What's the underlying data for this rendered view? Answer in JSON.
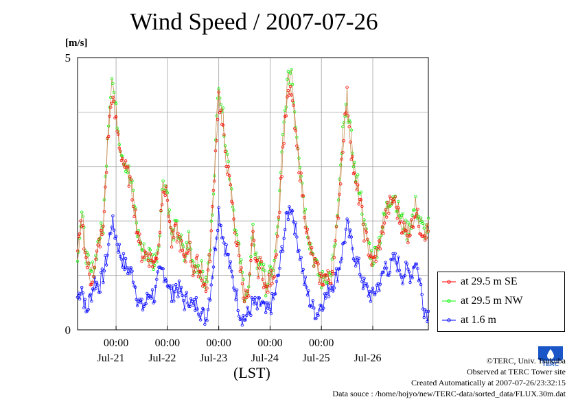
{
  "chart_data": {
    "type": "line",
    "title": "Wind Speed / 2007-07-26",
    "ylabel": "[m/s]",
    "xlabel": "(LST)",
    "ylim": [
      0,
      5
    ],
    "yticks": [
      "0",
      "5"
    ],
    "xlim": [
      "2007-07-20 06:00",
      "2007-07-26 22:00"
    ],
    "time_tick_labels": [
      "00:00",
      "00:00",
      "00:00",
      "00:00",
      "00:00"
    ],
    "date_tick_labels": [
      "Jul-21",
      "Jul-22",
      "Jul-23",
      "Jul-24",
      "Jul-25",
      "Jul-26"
    ],
    "grid": true,
    "legend_position": "lower-right outside",
    "x_keypoints_hours": [
      0,
      2,
      4,
      6,
      8,
      10,
      12,
      14,
      16,
      18,
      20,
      22,
      24,
      26,
      28,
      30,
      32,
      34,
      36,
      38,
      40,
      42,
      44,
      46,
      48,
      50,
      52,
      54,
      56,
      58,
      60,
      62,
      64,
      66,
      68,
      70,
      72,
      74,
      76,
      78,
      80,
      82,
      84,
      86,
      88,
      90,
      92,
      94,
      96,
      98,
      100,
      102,
      104,
      106,
      108,
      110,
      112,
      114,
      116,
      118,
      120,
      122,
      124,
      126,
      128,
      130,
      132,
      134,
      136,
      138,
      140,
      142,
      144,
      146,
      148,
      150,
      152,
      154,
      156,
      158,
      160,
      162,
      164
    ],
    "series": [
      {
        "name": "at 29.5 m SE",
        "color": "#ff0000",
        "values": [
          1.4,
          2.0,
          1.3,
          0.9,
          1.1,
          1.6,
          1.8,
          3.4,
          4.3,
          3.8,
          3.3,
          3.0,
          2.8,
          2.4,
          1.8,
          1.4,
          1.4,
          1.3,
          1.2,
          1.6,
          2.7,
          2.4,
          1.6,
          1.8,
          1.6,
          1.2,
          1.6,
          1.1,
          1.2,
          1.0,
          0.7,
          1.4,
          2.9,
          4.3,
          3.6,
          3.0,
          2.4,
          1.7,
          1.2,
          0.6,
          0.6,
          1.7,
          1.1,
          1.2,
          0.7,
          0.9,
          1.1,
          2.0,
          3.3,
          4.2,
          4.4,
          3.5,
          2.9,
          2.2,
          1.6,
          1.3,
          1.1,
          0.9,
          1.0,
          0.9,
          1.3,
          2.2,
          3.4,
          4.3,
          3.3,
          2.6,
          2.4,
          1.8,
          1.5,
          1.2,
          1.4,
          1.7,
          2.1,
          2.3,
          2.4,
          2.1,
          1.9,
          1.7,
          1.9,
          2.2,
          1.9,
          1.8,
          1.8
        ]
      },
      {
        "name": "at 29.5 m NW",
        "color": "#00ff00",
        "values": [
          1.4,
          2.1,
          1.4,
          1.0,
          1.2,
          1.7,
          1.9,
          3.6,
          4.7,
          4.0,
          3.4,
          3.1,
          2.9,
          2.5,
          1.8,
          1.5,
          1.4,
          1.4,
          1.2,
          1.6,
          2.8,
          2.5,
          1.7,
          1.9,
          1.7,
          1.3,
          1.7,
          1.2,
          1.2,
          1.1,
          0.8,
          1.5,
          3.0,
          4.6,
          3.9,
          3.2,
          2.6,
          1.8,
          1.3,
          0.7,
          0.7,
          1.8,
          1.2,
          1.3,
          0.8,
          1.0,
          1.2,
          2.1,
          3.5,
          4.5,
          4.8,
          3.8,
          3.1,
          2.3,
          1.7,
          1.4,
          1.1,
          0.9,
          1.0,
          1.0,
          1.4,
          2.3,
          3.6,
          4.1,
          3.5,
          2.8,
          2.6,
          1.9,
          1.6,
          1.3,
          1.5,
          1.8,
          2.2,
          2.4,
          2.5,
          2.2,
          2.0,
          1.8,
          2.0,
          2.3,
          2.0,
          1.8,
          1.9
        ]
      },
      {
        "name": "at 1.6 m",
        "color": "#0000ff",
        "values": [
          0.6,
          0.8,
          0.3,
          0.6,
          0.9,
          0.8,
          1.0,
          1.4,
          2.0,
          1.7,
          1.4,
          1.2,
          1.1,
          1.0,
          0.6,
          0.4,
          0.5,
          0.7,
          0.6,
          1.0,
          1.1,
          0.9,
          0.6,
          0.8,
          0.7,
          0.5,
          0.6,
          0.4,
          0.5,
          0.3,
          0.2,
          0.7,
          1.4,
          2.2,
          1.7,
          1.4,
          1.0,
          0.7,
          0.3,
          0.2,
          0.3,
          0.5,
          0.4,
          0.5,
          0.3,
          0.4,
          0.6,
          1.0,
          1.6,
          2.1,
          2.3,
          1.8,
          1.4,
          0.9,
          0.6,
          0.4,
          0.3,
          0.5,
          0.6,
          0.8,
          0.9,
          1.1,
          1.5,
          1.9,
          1.6,
          1.3,
          1.1,
          0.8,
          0.7,
          0.6,
          0.8,
          0.9,
          1.2,
          1.1,
          1.3,
          1.2,
          1.0,
          1.1,
          1.0,
          1.3,
          0.9,
          0.4,
          0.3
        ]
      }
    ]
  },
  "logo": {
    "text": "TERC"
  },
  "credits": {
    "copyright": "©TERC, Univ. Tsukuba",
    "observed": "Observed at TERC Tower site",
    "created": "Created Automatically at 2007-07-26/23:32:15",
    "source": "Data souce : /home/hojyo/new/TERC-data/sorted_data/FLUX.30m.dat"
  }
}
